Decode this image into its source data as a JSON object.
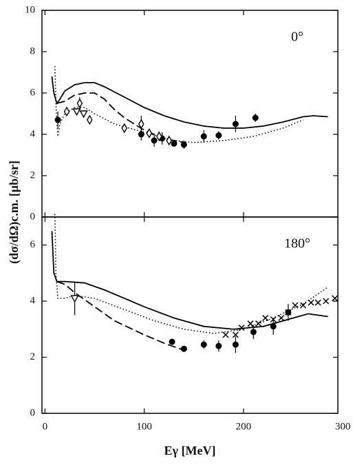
{
  "chart_data": [
    {
      "type": "line",
      "annotation": "0°",
      "ylabel": "(dσ/dΩ)c.m. [μb/sr]",
      "xlim": [
        -3,
        295
      ],
      "xticks": [
        0,
        100,
        200,
        300
      ],
      "show_xtick_labels": false,
      "ylim": [
        0,
        10
      ],
      "yticks": [
        0,
        2,
        4,
        6,
        8,
        10
      ],
      "series": [
        {
          "style": "solid",
          "color": "#000",
          "x": [
            7,
            9,
            12,
            15,
            20,
            30,
            40,
            50,
            60,
            80,
            100,
            120,
            140,
            160,
            180,
            200,
            220,
            240,
            260,
            270,
            285
          ],
          "values": [
            6.8,
            6.0,
            5.5,
            5.7,
            6.1,
            6.4,
            6.5,
            6.5,
            6.3,
            5.8,
            5.3,
            4.9,
            4.6,
            4.4,
            4.3,
            4.3,
            4.4,
            4.6,
            4.85,
            4.9,
            4.85
          ]
        },
        {
          "style": "dashed",
          "color": "#000",
          "x": [
            12,
            20,
            30,
            40,
            50,
            60,
            70,
            80,
            100,
            120,
            140
          ],
          "values": [
            5.5,
            5.6,
            5.9,
            6.0,
            6.0,
            5.7,
            5.2,
            4.8,
            4.2,
            3.8,
            3.6
          ]
        },
        {
          "style": "dotted",
          "color": "#000",
          "x": [
            10,
            11,
            13,
            15,
            20,
            30,
            40,
            50,
            70,
            100,
            130,
            150,
            180,
            210,
            240,
            260
          ],
          "values": [
            7.3,
            5.5,
            3.9,
            4.5,
            5.0,
            5.3,
            5.3,
            5.0,
            4.5,
            4.1,
            3.7,
            3.6,
            3.7,
            3.9,
            4.3,
            4.7
          ]
        },
        {
          "marker": "circle",
          "color": "#000",
          "x": [
            13,
            97,
            110,
            118,
            130,
            140,
            160,
            175,
            192,
            212
          ],
          "values": [
            4.7,
            4.0,
            3.7,
            3.8,
            3.55,
            3.5,
            3.9,
            3.95,
            4.5,
            4.8
          ],
          "errors": [
            0.4,
            0.3,
            0.3,
            0.3,
            0.15,
            0.2,
            0.3,
            0.2,
            0.4,
            0.2
          ]
        },
        {
          "marker": "diamond",
          "color": "#000",
          "x": [
            22,
            35,
            45,
            80,
            97,
            105,
            115,
            125
          ],
          "values": [
            5.1,
            5.5,
            4.7,
            4.3,
            4.5,
            4.05,
            3.9,
            3.7
          ],
          "errors": [
            null,
            0.3,
            null,
            null,
            0.4,
            null,
            null,
            null
          ]
        },
        {
          "marker": "triangle",
          "color": "#000",
          "x": [
            32,
            39
          ],
          "values": [
            5.1,
            5.0
          ],
          "errors": [
            null,
            null
          ]
        }
      ]
    },
    {
      "type": "line",
      "annotation": "180°",
      "xlabel": "Eγ [MeV]",
      "xlim": [
        -3,
        295
      ],
      "xticks": [
        0,
        100,
        200,
        300
      ],
      "show_xtick_labels": true,
      "ylim": [
        0,
        7
      ],
      "yticks": [
        0,
        2,
        4,
        6
      ],
      "series": [
        {
          "style": "solid",
          "color": "#000",
          "x": [
            7,
            9,
            12,
            20,
            40,
            60,
            80,
            100,
            130,
            160,
            190,
            220,
            250,
            265,
            285
          ],
          "values": [
            6.5,
            5.0,
            4.7,
            4.7,
            4.65,
            4.4,
            4.1,
            3.8,
            3.4,
            3.1,
            3.0,
            3.1,
            3.4,
            3.55,
            3.45
          ]
        },
        {
          "style": "dashed",
          "color": "#000",
          "x": [
            12,
            20,
            30,
            50,
            70,
            100,
            120,
            140
          ],
          "values": [
            4.7,
            4.6,
            4.3,
            3.8,
            3.3,
            2.8,
            2.5,
            2.25
          ]
        },
        {
          "style": "dotted",
          "color": "#000",
          "x": [
            10,
            11,
            13,
            20,
            30,
            50,
            80,
            110,
            140,
            170,
            200,
            230,
            260,
            285
          ],
          "values": [
            7.1,
            5.0,
            4.1,
            4.1,
            4.2,
            4.1,
            3.7,
            3.3,
            3.0,
            2.85,
            3.0,
            3.4,
            3.9,
            4.5
          ]
        },
        {
          "marker": "circle",
          "color": "#000",
          "x": [
            128,
            140,
            160,
            175,
            192,
            210,
            230,
            245
          ],
          "values": [
            2.55,
            2.3,
            2.45,
            2.4,
            2.45,
            2.9,
            3.1,
            3.6
          ],
          "errors": [
            null,
            null,
            0.15,
            0.2,
            0.3,
            0.25,
            0.3,
            0.3
          ]
        },
        {
          "marker": "cross",
          "color": "#000",
          "x": [
            182,
            192,
            198,
            207,
            215,
            222,
            230,
            238,
            245,
            252,
            260,
            268,
            275,
            283,
            292
          ],
          "values": [
            2.8,
            2.8,
            3.05,
            3.2,
            3.2,
            3.4,
            3.35,
            3.4,
            3.6,
            3.85,
            3.85,
            3.95,
            3.95,
            4.0,
            4.1
          ],
          "errors": [
            null,
            null,
            null,
            null,
            null,
            null,
            null,
            null,
            null,
            null,
            null,
            null,
            null,
            null,
            null
          ]
        },
        {
          "marker": "triangle",
          "color": "#000",
          "x": [
            30
          ],
          "values": [
            4.1
          ],
          "errors": [
            0.6
          ]
        }
      ]
    }
  ]
}
